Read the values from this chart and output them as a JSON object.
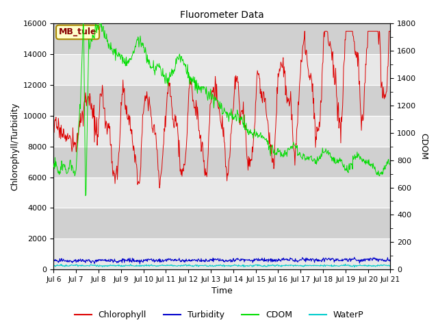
{
  "title": "Fluorometer Data",
  "xlabel": "Time",
  "ylabel_left": "Chlorophyll/Turbidity",
  "ylabel_right": "CDOM",
  "annotation": "MB_tule",
  "ylim_left": [
    0,
    16000
  ],
  "ylim_right": [
    0,
    1800
  ],
  "colors": {
    "chlorophyll": "#dd0000",
    "turbidity": "#0000cc",
    "cdom": "#00dd00",
    "waterp": "#00cccc"
  },
  "legend_labels": [
    "Chlorophyll",
    "Turbidity",
    "CDOM",
    "WaterP"
  ],
  "band_colors": [
    "#e8e8e8",
    "#d0d0d0"
  ],
  "figure_background": "#ffffff",
  "x_tick_labels": [
    "Jul 6",
    "Jul 7",
    "Jul 8",
    "Jul 9",
    "Jul 10",
    "Jul 11",
    "Jul 12",
    "Jul 13",
    "Jul 14",
    "Jul 15",
    "Jul 16",
    "Jul 17",
    "Jul 18",
    "Jul 19",
    "Jul 20",
    "Jul 21"
  ]
}
